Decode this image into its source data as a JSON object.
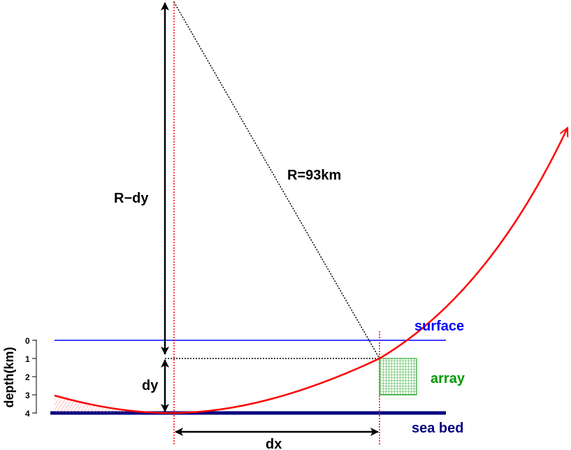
{
  "labels": {
    "r_minus_dy": "R−dy",
    "radius": "R=93km",
    "dy": "dy",
    "dx": "dx",
    "surface": "surface",
    "array": "array",
    "sea_bed": "sea bed",
    "depth_axis": "depth(km)"
  },
  "depth_ticks": [
    "0",
    "1",
    "2",
    "3",
    "4"
  ],
  "colors": {
    "surface": "#0000ff",
    "sea_bed": "#000080",
    "ray": "#ff0000",
    "array": "#009900",
    "construction": "#000000"
  }
}
